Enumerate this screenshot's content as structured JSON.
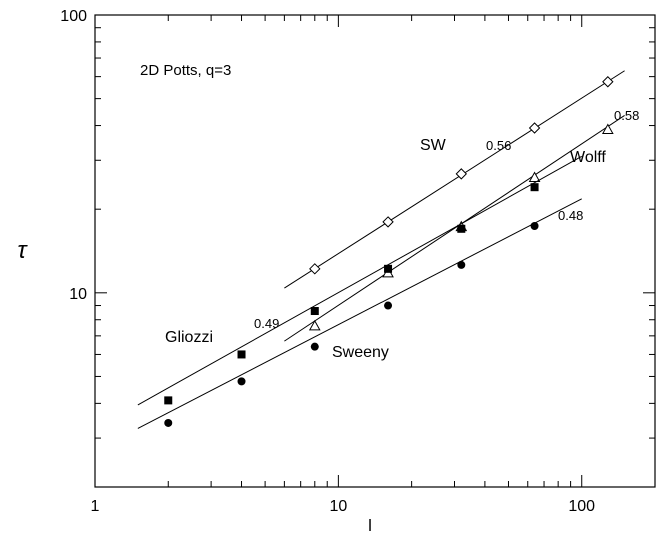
{
  "chart_data": {
    "type": "scatter",
    "title": "",
    "annotation_title": "2D Potts, q=3",
    "xlabel": "l",
    "ylabel": "τ",
    "xscale": "log",
    "yscale": "log",
    "xlim": [
      1,
      200
    ],
    "ylim": [
      2,
      100
    ],
    "x_ticks": [
      1,
      10,
      100
    ],
    "x_tick_labels": [
      "1",
      "10",
      "100"
    ],
    "y_ticks": [
      10,
      100
    ],
    "y_tick_labels": [
      "10",
      "100"
    ],
    "grid": false,
    "series": [
      {
        "name": "SW",
        "exponent_label": "0.56",
        "marker": "diamond-open",
        "points": [
          [
            8,
            12.2
          ],
          [
            16,
            18.0
          ],
          [
            32,
            26.8
          ],
          [
            64,
            39.2
          ],
          [
            128,
            57.5
          ]
        ],
        "fit_line": [
          [
            6,
            10.4
          ],
          [
            150,
            63.0
          ]
        ]
      },
      {
        "name": "Wolff",
        "exponent_label": "0.58",
        "marker": "triangle-open",
        "points": [
          [
            8,
            7.6
          ],
          [
            16,
            11.8
          ],
          [
            32,
            17.3
          ],
          [
            64,
            26.0
          ],
          [
            128,
            38.7
          ]
        ],
        "fit_line": [
          [
            6,
            6.7
          ],
          [
            150,
            43.5
          ]
        ]
      },
      {
        "name": "Gliozzi",
        "exponent_label": "0.49",
        "marker": "square-filled",
        "points": [
          [
            2,
            4.1
          ],
          [
            4,
            6.0
          ],
          [
            8,
            8.6
          ],
          [
            16,
            12.2
          ],
          [
            32,
            17.0
          ],
          [
            64,
            24.0
          ]
        ],
        "fit_line": [
          [
            1.5,
            3.95
          ],
          [
            100,
            31.0
          ]
        ]
      },
      {
        "name": "Sweeny",
        "exponent_label": "0.48",
        "marker": "circle-filled",
        "points": [
          [
            2,
            3.4
          ],
          [
            4,
            4.8
          ],
          [
            8,
            6.4
          ],
          [
            16,
            9.0
          ],
          [
            32,
            12.6
          ],
          [
            64,
            17.4
          ]
        ],
        "fit_line": [
          [
            1.5,
            3.25
          ],
          [
            100,
            21.8
          ]
        ]
      }
    ]
  }
}
